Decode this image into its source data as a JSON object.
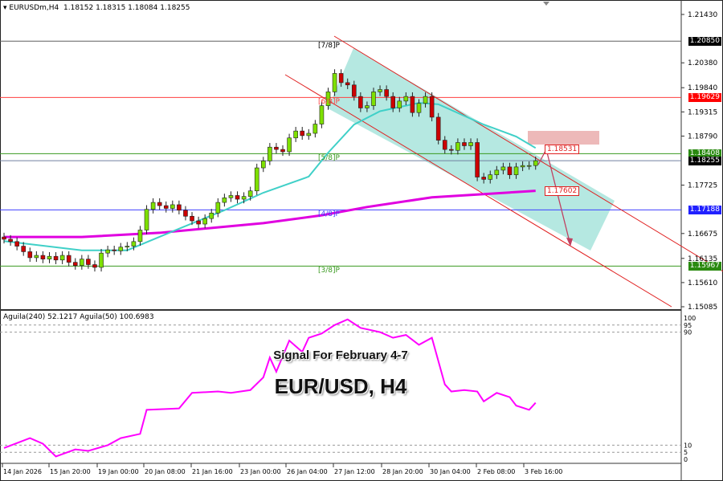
{
  "header": {
    "symbol": "EURUSDm,H4",
    "ohlc": "1.18152 1.18315 1.18084 1.18255"
  },
  "watermark": {
    "line1": "Signal For February 4-7",
    "line2": "EUR/USD, H4"
  },
  "indicator": {
    "label": "Aguila(240) 52.1217  Aguila(50) 100.6983",
    "levels": [
      "100",
      "95",
      "90",
      "10",
      "5",
      "0"
    ]
  },
  "colors": {
    "bull": "#7ee000",
    "bear": "#cc0000",
    "ma_fast": "#40d0c8",
    "ma_slow": "#e000e0",
    "channel": "#e02020",
    "channel_fill": "#a8e4dc"
  },
  "chart_data": {
    "type": "candlestick",
    "symbol": "EURUSDm",
    "timeframe": "H4",
    "ylim": [
      1.15085,
      1.2143
    ],
    "y_ticks": [
      "1.21430",
      "1.20380",
      "1.19840",
      "1.19315",
      "1.18790",
      "1.17725",
      "1.16675",
      "1.16135",
      "1.15610",
      "1.15085"
    ],
    "x_ticks": [
      "14 Jan 2026",
      "15 Jan 20:00",
      "19 Jan 00:00",
      "20 Jan 08:00",
      "21 Jan 16:00",
      "23 Jan 00:00",
      "26 Jan 04:00",
      "27 Jan 12:00",
      "28 Jan 20:00",
      "30 Jan 04:00",
      "2 Feb 08:00",
      "3 Feb 16:00"
    ],
    "first_open": 1.166,
    "closes": [
      1.1655,
      1.165,
      1.164,
      1.1628,
      1.1615,
      1.162,
      1.1612,
      1.1618,
      1.161,
      1.162,
      1.1605,
      1.1598,
      1.1612,
      1.16,
      1.1594,
      1.1625,
      1.1632,
      1.163,
      1.1638,
      1.164,
      1.165,
      1.1675,
      1.172,
      1.1735,
      1.1728,
      1.1722,
      1.173,
      1.1718,
      1.1705,
      1.1695,
      1.1688,
      1.17,
      1.1712,
      1.1735,
      1.1745,
      1.175,
      1.1742,
      1.1748,
      1.176,
      1.181,
      1.1825,
      1.1855,
      1.185,
      1.1845,
      1.1875,
      1.189,
      1.188,
      1.1885,
      1.1905,
      1.1945,
      1.1975,
      1.2015,
      1.1995,
      1.199,
      1.1965,
      1.194,
      1.1945,
      1.1975,
      1.198,
      1.1965,
      1.194,
      1.1955,
      1.1965,
      1.193,
      1.195,
      1.1965,
      1.192,
      1.187,
      1.185,
      1.1848,
      1.1865,
      1.1858,
      1.1865,
      1.179,
      1.1785,
      1.1795,
      1.1805,
      1.1812,
      1.1795,
      1.1812,
      1.1815,
      1.1815,
      1.18255
    ],
    "ma_fast": [
      [
        0,
        1.1651
      ],
      [
        12,
        1.1631
      ],
      [
        19,
        1.1631
      ],
      [
        27,
        1.1678
      ],
      [
        34,
        1.1718
      ],
      [
        40,
        1.1756
      ],
      [
        47,
        1.1791
      ],
      [
        50,
        1.1843
      ],
      [
        54,
        1.1904
      ],
      [
        58,
        1.1933
      ],
      [
        64,
        1.1951
      ],
      [
        67,
        1.1948
      ],
      [
        74,
        1.1904
      ],
      [
        79,
        1.1878
      ],
      [
        82,
        1.18531
      ]
    ],
    "ma_slow": [
      [
        0,
        1.166
      ],
      [
        12,
        1.166
      ],
      [
        24,
        1.1669
      ],
      [
        30,
        1.1677
      ],
      [
        40,
        1.169
      ],
      [
        49,
        1.1707
      ],
      [
        56,
        1.1725
      ],
      [
        66,
        1.1746
      ],
      [
        74,
        1.1753
      ],
      [
        82,
        1.17602
      ]
    ],
    "levels": [
      {
        "price": "1.20850",
        "label": "[7/8]P",
        "color": "#606060",
        "tag_bg": "#000000"
      },
      {
        "price": "1.19629",
        "label": "[6/8]P",
        "color": "#ff4040",
        "tag_bg": "#ff0000"
      },
      {
        "price": "1.18408",
        "label": "[5/8]P",
        "color": "#3a9a20",
        "tag_bg": "#2a8a10"
      },
      {
        "price": "1.18255",
        "label": "",
        "color": "#7080a0",
        "tag_bg": "#000000"
      },
      {
        "price": "1.17188",
        "label": "[4/8]P",
        "color": "#4040ff",
        "tag_bg": "#2020ff"
      },
      {
        "price": "1.15967",
        "label": "[3/8]P",
        "color": "#3a9a20",
        "tag_bg": "#2a8a10"
      }
    ],
    "annotations": [
      "1.18531",
      "1.17602"
    ],
    "aguila": [
      [
        0,
        8
      ],
      [
        4,
        15
      ],
      [
        6,
        11
      ],
      [
        8,
        2
      ],
      [
        11,
        7
      ],
      [
        13,
        6
      ],
      [
        16,
        10
      ],
      [
        18,
        15
      ],
      [
        21,
        18
      ],
      [
        22,
        35
      ],
      [
        27,
        36
      ],
      [
        29,
        47
      ],
      [
        33,
        48
      ],
      [
        35,
        47
      ],
      [
        38,
        49
      ],
      [
        40,
        58
      ],
      [
        41,
        72
      ],
      [
        42,
        62
      ],
      [
        44,
        84
      ],
      [
        46,
        76
      ],
      [
        47,
        86
      ],
      [
        49,
        89
      ],
      [
        51,
        95
      ],
      [
        53,
        99
      ],
      [
        55,
        93
      ],
      [
        56,
        92
      ],
      [
        58,
        90
      ],
      [
        60,
        86
      ],
      [
        62,
        88
      ],
      [
        64,
        81
      ],
      [
        66,
        86
      ],
      [
        68,
        53
      ],
      [
        69,
        48
      ],
      [
        71,
        49
      ],
      [
        73,
        48
      ],
      [
        74,
        41
      ],
      [
        76,
        47
      ],
      [
        78,
        44
      ],
      [
        79,
        38
      ],
      [
        81,
        35
      ],
      [
        82,
        40
      ]
    ]
  }
}
